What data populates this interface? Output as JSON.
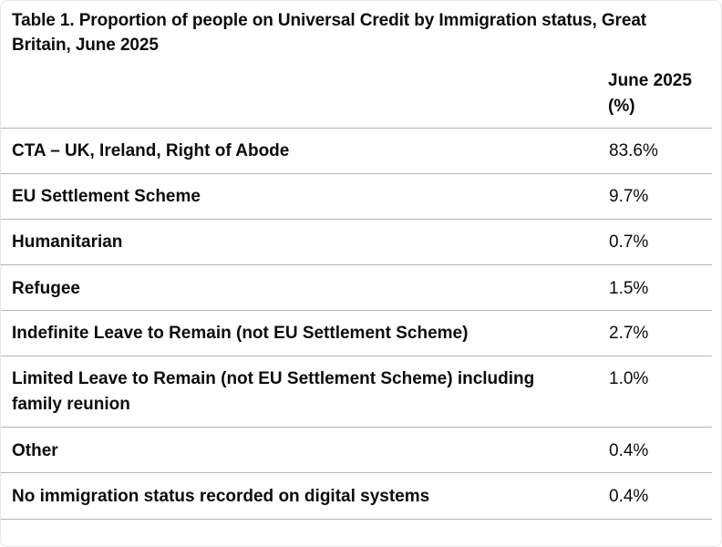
{
  "table": {
    "caption": "Table 1. Proportion of people on Universal Credit by Immigration status, Great Britain, June 2025",
    "column_header": "June 2025 (%)",
    "rows": [
      {
        "label": "CTA – UK, Ireland, Right of Abode",
        "value": "83.6%"
      },
      {
        "label": "EU Settlement Scheme",
        "value": "9.7%"
      },
      {
        "label": "Humanitarian",
        "value": "0.7%"
      },
      {
        "label": "Refugee",
        "value": "1.5%"
      },
      {
        "label": "Indefinite Leave to Remain (not EU Settlement Scheme)",
        "value": "2.7%"
      },
      {
        "label": "Limited Leave to Remain (not EU Settlement Scheme) including family reunion",
        "value": "1.0%"
      },
      {
        "label": "Other",
        "value": "0.4%"
      },
      {
        "label": "No immigration status recorded on digital systems",
        "value": "0.4%"
      }
    ]
  }
}
